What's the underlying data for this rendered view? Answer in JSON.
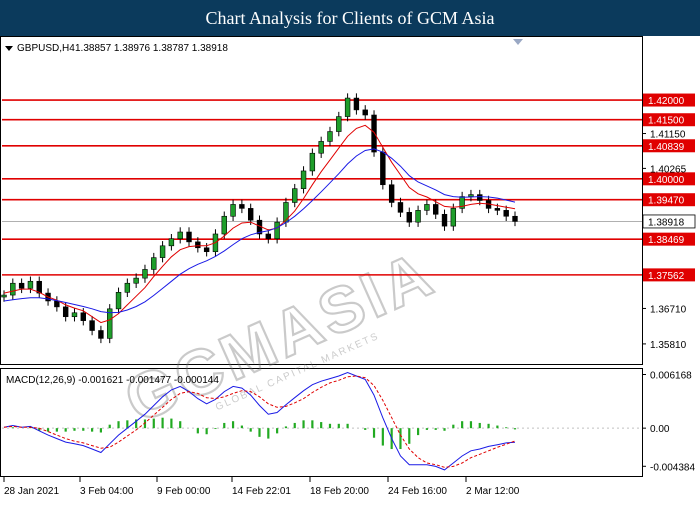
{
  "header": {
    "title": "Chart Analysis for Clients of GCM Asia"
  },
  "info": {
    "symbol": "GBPUSD,H4",
    "ohlc": "1.38857 1.38976 1.38787 1.38918"
  },
  "watermark": {
    "brand": "GCMASIA",
    "tagline": "GLOBAL CAPITAL MARKETS"
  },
  "chart_data": [
    {
      "type": "line",
      "title": "",
      "symbol": "GBPUSD,H4",
      "ohlc": "1.38857 1.38976 1.38787 1.38918",
      "current_price": 1.38918,
      "current_price_label": "1.38918",
      "ylim": [
        1.353,
        1.436
      ],
      "y_ticks": [
        "1.41150",
        "1.40265",
        "1.36710",
        "1.35810"
      ],
      "y_tick_values": [
        1.4115,
        1.40265,
        1.3671,
        1.3581
      ],
      "x_ticks": [
        "28 Jan 2021",
        "3 Feb 04:00",
        "9 Feb 00:00",
        "14 Feb 22:01",
        "18 Feb 20:00",
        "24 Feb 16:00",
        "2 Mar 12:00"
      ],
      "levels": [
        1.42,
        1.415,
        1.40839,
        1.4,
        1.3947,
        1.38469,
        1.37562
      ],
      "level_labels": [
        "1.42000",
        "1.41500",
        "1.40839",
        "1.40000",
        "1.39470",
        "1.38469",
        "1.37562"
      ],
      "series": [
        {
          "name": "",
          "kind": "price",
          "color": "#000000",
          "values": [
            1.3705,
            1.3735,
            1.3722,
            1.374,
            1.371,
            1.369,
            1.3675,
            1.365,
            1.366,
            1.364,
            1.3615,
            1.3595,
            1.367,
            1.3712,
            1.3735,
            1.3748,
            1.377,
            1.38,
            1.383,
            1.3848,
            1.3865,
            1.384,
            1.3825,
            1.3815,
            1.386,
            1.3905,
            1.3935,
            1.3925,
            1.3895,
            1.386,
            1.3848,
            1.389,
            1.394,
            1.3975,
            1.402,
            1.4065,
            1.4095,
            1.412,
            1.4158,
            1.4205,
            1.4175,
            1.4162,
            1.4068,
            1.3985,
            1.394,
            1.3915,
            1.389,
            1.392,
            1.3935,
            1.391,
            1.388,
            1.3925,
            1.3955,
            1.396,
            1.3945,
            1.3925,
            1.392,
            1.3905,
            1.3892
          ]
        },
        {
          "name": "",
          "kind": "ma-fast",
          "color": "#e00000",
          "values": [
            1.371,
            1.3715,
            1.372,
            1.372,
            1.3712,
            1.37,
            1.3692,
            1.368,
            1.3672,
            1.3665,
            1.365,
            1.3635,
            1.3642,
            1.3658,
            1.368,
            1.3702,
            1.3724,
            1.3752,
            1.3778,
            1.3802,
            1.382,
            1.3828,
            1.383,
            1.383,
            1.3838,
            1.3855,
            1.3875,
            1.3888,
            1.389,
            1.388,
            1.387,
            1.3875,
            1.3895,
            1.3918,
            1.395,
            1.3985,
            1.4018,
            1.4048,
            1.4078,
            1.4108,
            1.4128,
            1.4136,
            1.4118,
            1.408,
            1.4042,
            1.401,
            1.3978,
            1.3962,
            1.3954,
            1.3942,
            1.393,
            1.3928,
            1.393,
            1.3935,
            1.3938,
            1.3936,
            1.3932,
            1.3928,
            1.3924
          ]
        },
        {
          "name": "",
          "kind": "ma-slow",
          "color": "#1a1ae6",
          "values": [
            1.369,
            1.3693,
            1.3696,
            1.3698,
            1.3698,
            1.3695,
            1.3691,
            1.3686,
            1.3681,
            1.3676,
            1.367,
            1.3663,
            1.366,
            1.3661,
            1.3667,
            1.3676,
            1.3688,
            1.3704,
            1.3722,
            1.374,
            1.3758,
            1.3772,
            1.3783,
            1.3792,
            1.3803,
            1.3817,
            1.3833,
            1.3848,
            1.3858,
            1.3864,
            1.3868,
            1.3876,
            1.3889,
            1.3905,
            1.3924,
            1.3945,
            1.3967,
            1.399,
            1.4013,
            1.4038,
            1.4058,
            1.4072,
            1.4076,
            1.4068,
            1.4052,
            1.4032,
            1.4008,
            1.3992,
            1.3982,
            1.3972,
            1.396,
            1.3955,
            1.3953,
            1.3954,
            1.3955,
            1.3954,
            1.3951,
            1.3946,
            1.3941
          ]
        }
      ]
    },
    {
      "type": "bar",
      "title": "MACD(12,26,9) -0.001621 -0.001477 -0.000144",
      "ylim": [
        -0.0055,
        0.0068
      ],
      "y_ticks": [
        "0.006168",
        "0.00",
        "-0.004384"
      ],
      "y_tick_values": [
        0.006168,
        0.0,
        -0.004384
      ],
      "series": [
        {
          "name": "",
          "kind": "macd-line",
          "color": "#1a1ae6",
          "values": [
            0.0001,
            0.0003,
            0.0001,
            0.0002,
            -0.0003,
            -0.0008,
            -0.0012,
            -0.0016,
            -0.0018,
            -0.002,
            -0.0024,
            -0.0028,
            -0.0018,
            -0.0008,
            0.0,
            0.0008,
            0.0016,
            0.0026,
            0.0036,
            0.0044,
            0.0048,
            0.0042,
            0.0034,
            0.0028,
            0.0033,
            0.0042,
            0.0048,
            0.0046,
            0.0038,
            0.0026,
            0.0016,
            0.0018,
            0.0027,
            0.0035,
            0.0043,
            0.005,
            0.0054,
            0.0057,
            0.006,
            0.0064,
            0.006,
            0.0056,
            0.0038,
            0.0012,
            -0.0012,
            -0.0032,
            -0.0042,
            -0.0042,
            -0.0042,
            -0.0044,
            -0.0048,
            -0.004,
            -0.0032,
            -0.0026,
            -0.0024,
            -0.0021,
            -0.0019,
            -0.0017,
            -0.00162
          ]
        },
        {
          "name": "",
          "kind": "signal-line",
          "color": "#e00000",
          "values": [
            0.0001,
            0.0002,
            0.0001,
            0.0001,
            0.0,
            -0.0004,
            -0.0008,
            -0.0012,
            -0.0015,
            -0.0017,
            -0.002,
            -0.0023,
            -0.0022,
            -0.0016,
            -0.0009,
            -0.0002,
            0.0006,
            0.0015,
            0.0024,
            0.0033,
            0.004,
            0.0042,
            0.004,
            0.0035,
            0.0034,
            0.0036,
            0.004,
            0.0043,
            0.0042,
            0.0036,
            0.0028,
            0.0024,
            0.0025,
            0.0029,
            0.0034,
            0.0041,
            0.0047,
            0.0052,
            0.0055,
            0.0059,
            0.006,
            0.0058,
            0.0049,
            0.0032,
            0.0012,
            -0.0008,
            -0.0024,
            -0.0034,
            -0.004,
            -0.0042,
            -0.0045,
            -0.0044,
            -0.004,
            -0.0034,
            -0.003,
            -0.0026,
            -0.0022,
            -0.00185,
            -0.001477
          ]
        },
        {
          "name": "",
          "kind": "histogram",
          "color": "#22aa22",
          "values": [
            0.0,
            0.0001,
            0.0,
            0.0001,
            -0.0003,
            -0.0004,
            -0.0004,
            -0.0004,
            -0.0003,
            -0.0003,
            -0.0004,
            -0.0005,
            0.0004,
            0.0008,
            0.0009,
            0.001,
            0.001,
            0.0011,
            0.0012,
            0.0011,
            0.0008,
            0.0,
            -0.0006,
            -0.0007,
            -0.0001,
            0.0006,
            0.0008,
            0.0003,
            -0.0004,
            -0.001,
            -0.0012,
            -0.0006,
            0.0002,
            0.0006,
            0.0009,
            0.0009,
            0.0007,
            0.0005,
            0.0005,
            0.0005,
            0.0,
            -0.0002,
            -0.0011,
            -0.002,
            -0.0024,
            -0.0024,
            -0.0018,
            -0.0008,
            -0.0002,
            -0.0002,
            -0.0003,
            0.0004,
            0.0008,
            0.0008,
            0.0006,
            0.0005,
            0.0003,
            0.0001,
            -0.000144
          ]
        }
      ]
    }
  ]
}
